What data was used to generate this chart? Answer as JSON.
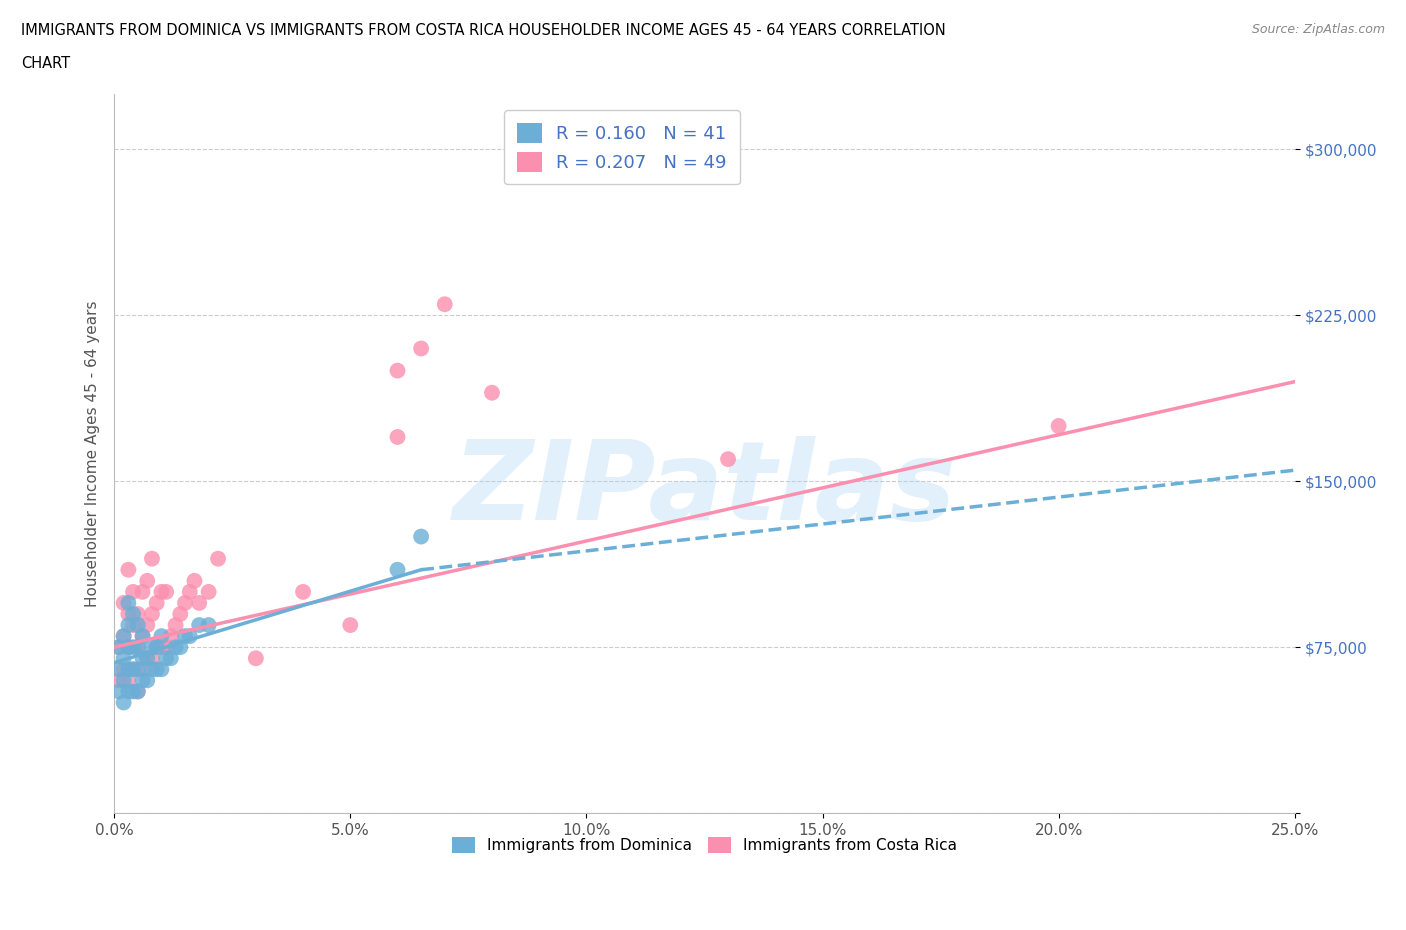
{
  "title_line1": "IMMIGRANTS FROM DOMINICA VS IMMIGRANTS FROM COSTA RICA HOUSEHOLDER INCOME AGES 45 - 64 YEARS CORRELATION",
  "title_line2": "CHART",
  "source_text": "Source: ZipAtlas.com",
  "ylabel": "Householder Income Ages 45 - 64 years",
  "xlim": [
    0.0,
    0.25
  ],
  "ylim": [
    0,
    325000
  ],
  "yticks": [
    0,
    75000,
    150000,
    225000,
    300000
  ],
  "ytick_labels": [
    "",
    "$75,000",
    "$150,000",
    "$225,000",
    "$300,000"
  ],
  "xtick_labels": [
    "0.0%",
    "5.0%",
    "10.0%",
    "15.0%",
    "20.0%",
    "25.0%"
  ],
  "xticks": [
    0.0,
    0.05,
    0.1,
    0.15,
    0.2,
    0.25
  ],
  "dominica_color": "#6baed6",
  "costa_rica_color": "#fb8faf",
  "dominica_R": 0.16,
  "dominica_N": 41,
  "costa_rica_R": 0.207,
  "costa_rica_N": 49,
  "legend_label_dominica": "Immigrants from Dominica",
  "legend_label_costa_rica": "Immigrants from Costa Rica",
  "background_color": "#ffffff",
  "grid_color": "#cccccc",
  "watermark_text": "ZIPatlas",
  "dominica_x": [
    0.001,
    0.001,
    0.001,
    0.002,
    0.002,
    0.002,
    0.002,
    0.003,
    0.003,
    0.003,
    0.003,
    0.003,
    0.004,
    0.004,
    0.004,
    0.004,
    0.005,
    0.005,
    0.005,
    0.005,
    0.006,
    0.006,
    0.006,
    0.007,
    0.007,
    0.008,
    0.008,
    0.009,
    0.009,
    0.01,
    0.01,
    0.011,
    0.012,
    0.013,
    0.014,
    0.015,
    0.016,
    0.018,
    0.02,
    0.06,
    0.065
  ],
  "dominica_y": [
    55000,
    65000,
    75000,
    50000,
    60000,
    70000,
    80000,
    55000,
    65000,
    75000,
    85000,
    95000,
    55000,
    65000,
    75000,
    90000,
    55000,
    65000,
    75000,
    85000,
    60000,
    70000,
    80000,
    60000,
    70000,
    65000,
    75000,
    65000,
    75000,
    65000,
    80000,
    70000,
    70000,
    75000,
    75000,
    80000,
    80000,
    85000,
    85000,
    110000,
    125000
  ],
  "costa_rica_x": [
    0.001,
    0.001,
    0.002,
    0.002,
    0.002,
    0.003,
    0.003,
    0.003,
    0.003,
    0.004,
    0.004,
    0.004,
    0.005,
    0.005,
    0.005,
    0.006,
    0.006,
    0.006,
    0.007,
    0.007,
    0.007,
    0.008,
    0.008,
    0.008,
    0.009,
    0.009,
    0.01,
    0.01,
    0.011,
    0.011,
    0.012,
    0.013,
    0.014,
    0.015,
    0.016,
    0.017,
    0.018,
    0.02,
    0.022,
    0.03,
    0.04,
    0.05,
    0.06,
    0.06,
    0.065,
    0.07,
    0.08,
    0.13,
    0.2
  ],
  "costa_rica_y": [
    60000,
    75000,
    65000,
    80000,
    95000,
    60000,
    75000,
    90000,
    110000,
    65000,
    85000,
    100000,
    55000,
    75000,
    90000,
    65000,
    80000,
    100000,
    70000,
    85000,
    105000,
    70000,
    90000,
    115000,
    75000,
    95000,
    75000,
    100000,
    75000,
    100000,
    80000,
    85000,
    90000,
    95000,
    100000,
    105000,
    95000,
    100000,
    115000,
    70000,
    100000,
    85000,
    170000,
    200000,
    210000,
    230000,
    190000,
    160000,
    175000
  ],
  "cr_line_x0": 0.0,
  "cr_line_x1": 0.25,
  "cr_line_y0": 75000,
  "cr_line_y1": 195000,
  "dom_line_solid_x0": 0.0,
  "dom_line_solid_x1": 0.065,
  "dom_line_solid_y0": 68000,
  "dom_line_solid_y1": 110000,
  "dom_line_dashed_x0": 0.065,
  "dom_line_dashed_x1": 0.25,
  "dom_line_dashed_y0": 110000,
  "dom_line_dashed_y1": 155000
}
